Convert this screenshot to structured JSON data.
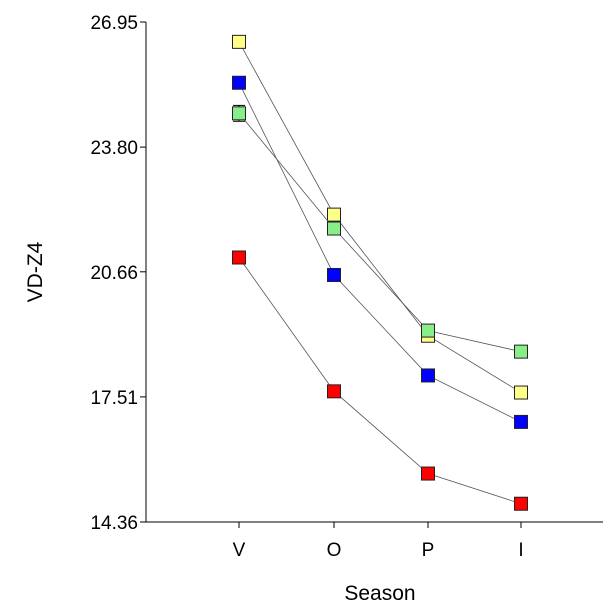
{
  "chart_data": {
    "type": "line",
    "xlabel": "Season",
    "ylabel": "VD-Z4",
    "categories": [
      "V",
      "O",
      "P",
      "I"
    ],
    "ylim": [
      14.36,
      26.95
    ],
    "yticks": [
      "26.95",
      "23.80",
      "20.66",
      "17.51",
      "14.36"
    ],
    "grid": false,
    "legend": "none",
    "series": [
      {
        "color": "#ffff88",
        "values": [
          26.45,
          22.1,
          19.05,
          17.62
        ]
      },
      {
        "color": "#0000ff",
        "values": [
          25.42,
          20.58,
          18.05,
          16.88
        ]
      },
      {
        "color": "#88ee88",
        "values": [
          24.65,
          21.75,
          19.18,
          18.65
        ],
        "error": [
          0.2,
          0.15,
          0.1,
          0.08
        ]
      },
      {
        "color": "#ff0000",
        "values": [
          21.02,
          17.65,
          15.58,
          14.82
        ]
      }
    ]
  }
}
